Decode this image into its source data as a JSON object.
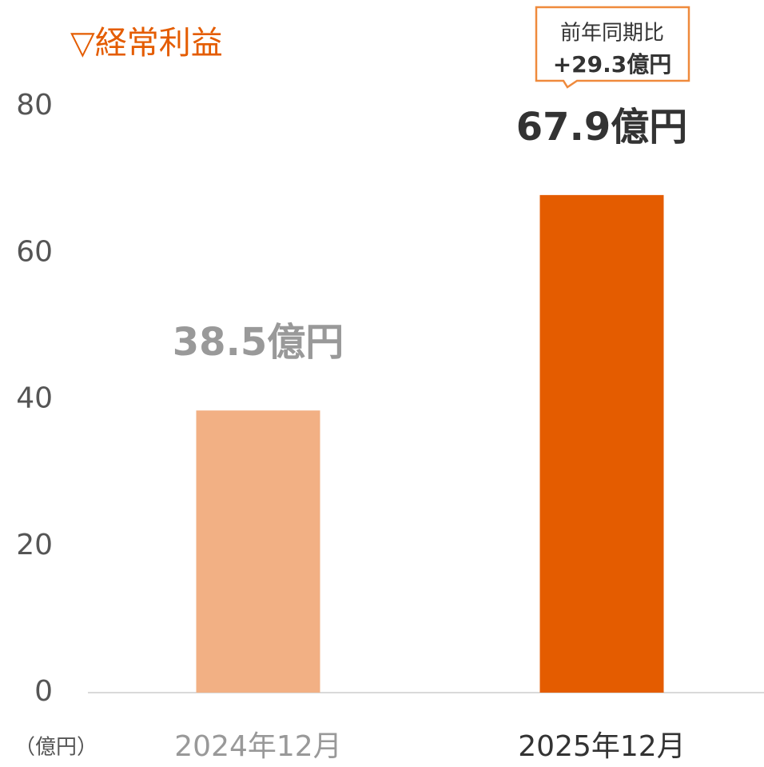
{
  "chart_data": {
    "type": "bar",
    "title": "▽経常利益",
    "y_unit_label": "（億円）",
    "categories": [
      "2024年12月",
      "2025年12月"
    ],
    "values": [
      38.5,
      67.9
    ],
    "value_labels": [
      "38.5億円",
      "67.9億円"
    ],
    "colors": [
      "#f2b084",
      "#e45c00"
    ],
    "label_colors": [
      "#999999",
      "#333333"
    ],
    "category_colors": [
      "#999999",
      "#333333"
    ],
    "ylim": [
      0,
      80
    ],
    "yticks": [
      0,
      20,
      40,
      60,
      80
    ],
    "grid": false,
    "annotation": {
      "label": "前年同期比",
      "text": "+29.3億円"
    }
  }
}
